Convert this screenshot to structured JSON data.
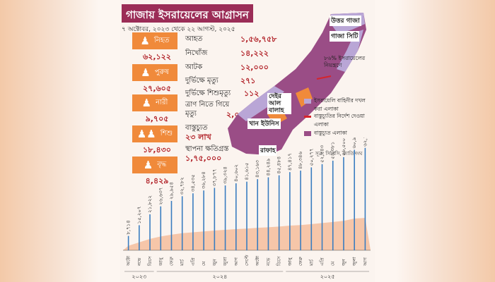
{
  "header": {
    "title": "গাজায় ইসরায়েলের আগ্রাসন",
    "subtitle": "৭ অক্টোবর, ২০২৩ থেকে ২২ আগস্ট, ২০২৫"
  },
  "stats": [
    {
      "label": "নিহত",
      "value": "৬২,১২২",
      "people": 1
    },
    {
      "label": "পুরুষ",
      "value": "২৭,৬০৫",
      "people": 1
    },
    {
      "label": "নারী",
      "value": "৯,৭০৫",
      "people": 1
    },
    {
      "label": "শিশু",
      "value": "১৮,৪৩০",
      "people": 2
    },
    {
      "label": "বৃদ্ধ",
      "value": "৪,৪২৯",
      "people": 1
    }
  ],
  "details": [
    {
      "label": "আহত",
      "value": "১,৫৬,৭৫৮"
    },
    {
      "label": "নিখোঁজ",
      "value": "১৪,২২২"
    },
    {
      "label": "আটক",
      "value": "১২,০০০"
    },
    {
      "label": "দুর্ভিক্ষে মৃত্যু",
      "value": "২৭১"
    },
    {
      "label": "দুর্ভিক্ষে শিশুমৃত্যু",
      "value": "১১২"
    },
    {
      "label": "ত্রাণ নিতে গিয়ে মৃত্যু",
      "value": "২,০৩৬"
    },
    {
      "label": "বাস্তুচ্যুত",
      "value": "২৩ লাখ"
    },
    {
      "label": "স্থাপনা ক্ষতিগ্রস্ত",
      "value": "১,৭৫,০০০"
    }
  ],
  "map": {
    "labels": {
      "north": "উত্তর গাজা",
      "city": "গাজা সিটি",
      "deir": "দেইর আল বালাহ",
      "khan": "খান ইউনিস",
      "rafah": "রাফাহ",
      "pct": "৮৬% ইসরায়েলের নিয়ন্ত্রণে"
    },
    "legend": [
      {
        "text": "ইসরায়েলি বাহিনীর দখল করা এলাকা",
        "color": "#b9a6d6"
      },
      {
        "text": "বাস্তুচ্যুতির নির্দেশ দেওয়া এলাকা",
        "color": "#d6242b"
      },
      {
        "text": "বাস্তুচ্যুত এলাকা",
        "color": "#9a4d86"
      }
    ],
    "colors": {
      "land": "#9a4d86",
      "occupied": "#b9a6d6",
      "hot": "#f08a3b"
    }
  },
  "source": "সূত্র: সিপিসি, জাতিসংঘ",
  "chart_data": {
    "type": "bar",
    "title": "",
    "xlabel": "",
    "ylabel": "",
    "year_labels": [
      "২০২৩",
      "২০২৪",
      "২০২৫"
    ],
    "categories": [
      "অক্টো",
      "নভে",
      "ডিসে",
      "জানু",
      "ফেব্রু",
      "মার্চ",
      "এপ্রি",
      "মে",
      "জুন",
      "জুলা",
      "আগ",
      "সেপ্টে",
      "অক্টো",
      "নভে",
      "ডিসে",
      "জানু",
      "ফেব্রু",
      "মার্চ",
      "এপ্রি",
      "মে",
      "জুন",
      "জুলা",
      "আগ"
    ],
    "values": [
      8714,
      15207,
      21822,
      26637,
      29954,
      32782,
      34535,
      36284,
      37877,
      39324,
      40602,
      41615,
      43163,
      44249,
      45484,
      47417,
      48346,
      50277,
      52243,
      54381,
      56500,
      60933,
      62122
    ],
    "value_labels": [
      "৮,৭১৪",
      "১৫,২০৭",
      "২১,৮২২",
      "২৬,৬৩৭",
      "২৯,৯৫৪",
      "৩২,৭৮২",
      "৩৪,৫৩৫",
      "৩৬,২৮৪",
      "৩৭,৮৭৭",
      "৩৯,৩২৪",
      "৪০,৬০২",
      "৪১,৬১৫",
      "৪৩,১৬৩",
      "৪৪,২৪৯",
      "৪৫,৪৮৪",
      "৪৭,৪১৭",
      "৪৮,৩৪৬",
      "৫০,২৭৭",
      "৫২,২৪৩",
      "৫৪,৩৮১",
      "৫৬,৫০০",
      "৬০,৯৩৩",
      "৬২,১২২"
    ],
    "ylim": [
      0,
      65000
    ],
    "bar_color": "#3a7dc0",
    "area_color": "#f3a06f",
    "legend": ""
  }
}
